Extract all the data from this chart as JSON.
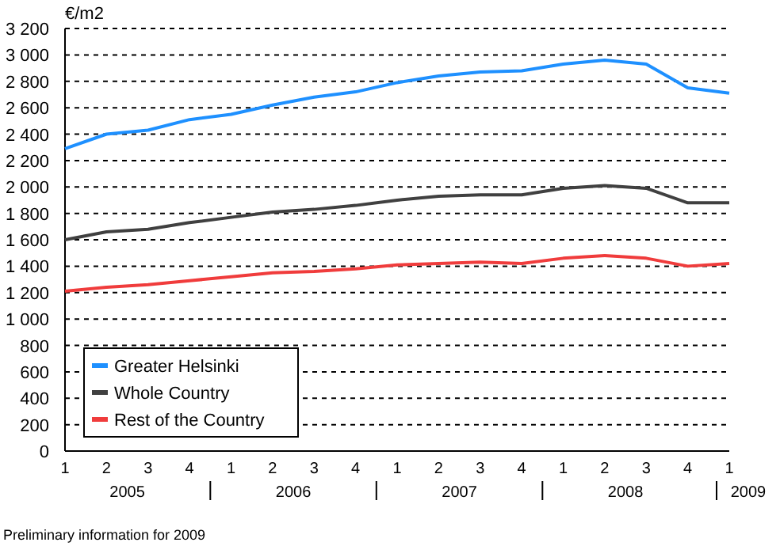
{
  "chart_data": {
    "type": "line",
    "ylabel": "€/m2",
    "categories": [
      "1",
      "2",
      "3",
      "4",
      "1",
      "2",
      "3",
      "4",
      "1",
      "2",
      "3",
      "4",
      "1",
      "2",
      "3",
      "4",
      "1"
    ],
    "series": [
      {
        "name": "Greater Helsinki",
        "color": "#1e90ff",
        "values": [
          2290,
          2400,
          2430,
          2510,
          2550,
          2620,
          2680,
          2720,
          2790,
          2840,
          2870,
          2880,
          2930,
          2960,
          2930,
          2750,
          2710
        ]
      },
      {
        "name": "Whole Country",
        "color": "#404040",
        "values": [
          1600,
          1660,
          1680,
          1730,
          1770,
          1810,
          1830,
          1860,
          1900,
          1930,
          1940,
          1940,
          1990,
          2010,
          1990,
          1880,
          1880
        ]
      },
      {
        "name": "Rest of the Country",
        "color": "#f03c3c",
        "values": [
          1210,
          1240,
          1260,
          1290,
          1320,
          1350,
          1360,
          1380,
          1410,
          1420,
          1430,
          1420,
          1460,
          1480,
          1460,
          1400,
          1420
        ]
      }
    ],
    "ylim": [
      0,
      3200
    ],
    "yticks": [
      0,
      200,
      400,
      600,
      800,
      {
        "value": 1000,
        "label": "1 000"
      },
      {
        "value": 1200,
        "label": "1 200"
      },
      {
        "value": 1400,
        "label": "1 400"
      },
      {
        "value": 1600,
        "label": "1 600"
      },
      {
        "value": 1800,
        "label": "1 800"
      },
      {
        "value": 2000,
        "label": "2 000"
      },
      {
        "value": 2200,
        "label": "2 200"
      },
      {
        "value": 2400,
        "label": "2 400"
      },
      {
        "value": 2600,
        "label": "2 600"
      },
      {
        "value": 2800,
        "label": "2 800"
      },
      {
        "value": 3000,
        "label": "3 000"
      },
      {
        "value": 3200,
        "label": "3 200"
      }
    ],
    "grid": "y",
    "legend": "bottom left",
    "marker": "none",
    "line_style": "solid",
    "annotations": [
      "2005",
      "2006",
      "2007",
      "2008",
      "2009",
      "Preliminary information for 2009"
    ]
  }
}
